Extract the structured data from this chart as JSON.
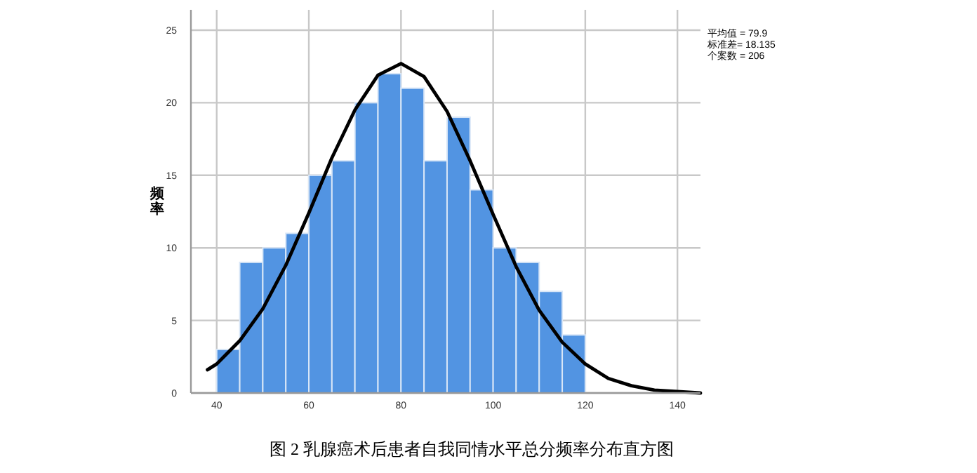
{
  "chart_data": {
    "type": "histogram",
    "title": "图 2 乳腺癌术后患者自我同情水平总分频率分布直方图",
    "ylabel": "频率",
    "bins": [
      40,
      45,
      50,
      55,
      60,
      65,
      70,
      75,
      80,
      85,
      90,
      95,
      100,
      105,
      110,
      115,
      120
    ],
    "values": [
      3,
      9,
      10,
      11,
      15,
      16,
      20,
      22,
      21,
      16,
      19,
      14,
      10,
      9,
      7,
      4
    ],
    "color": "#5294e2",
    "series": [
      {
        "type": "line",
        "color": "#000000",
        "x": [
          38,
          40,
          45,
          50,
          55,
          60,
          65,
          70,
          75,
          80,
          85,
          90,
          95,
          100,
          105,
          110,
          115,
          120,
          125,
          130,
          135,
          140,
          145
        ],
        "values": [
          1.6,
          2.0,
          3.6,
          5.8,
          8.8,
          12.4,
          16.2,
          19.5,
          21.9,
          22.7,
          21.8,
          19.4,
          16.0,
          12.3,
          8.7,
          5.7,
          3.5,
          2.0,
          1.0,
          0.5,
          0.2,
          0.1,
          0.0
        ]
      }
    ],
    "xlim": [
      34.4,
      145
    ],
    "ylim": [
      0,
      26.4
    ],
    "xticks": [
      40,
      60,
      80,
      100,
      120,
      140
    ],
    "yticks": [
      0,
      5,
      10,
      15,
      20,
      25
    ],
    "grid": true,
    "annotations": [
      "平均值 = 79.9",
      "标准差= 18.135",
      "个案数 = 206"
    ]
  }
}
